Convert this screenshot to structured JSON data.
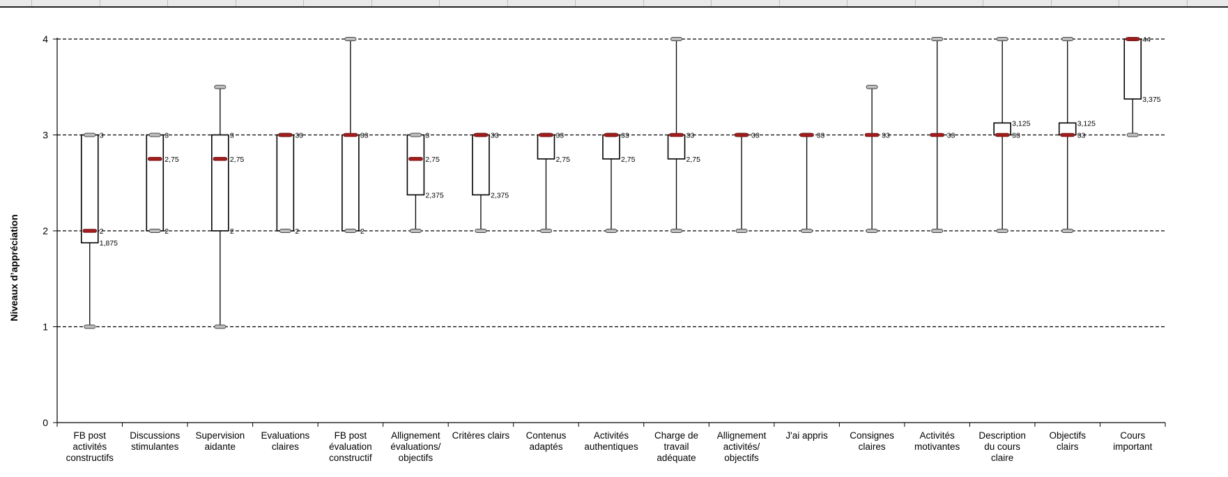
{
  "chart_data": {
    "type": "box",
    "ylabel": "Niveaux d’appréciation",
    "xlabel": "",
    "ylim": [
      0,
      4
    ],
    "yticks": [
      "0",
      "1",
      "2",
      "3",
      "4"
    ],
    "grid": "dashed horizontal lines at 1, 2, 3, 4",
    "legend": "none",
    "colors": {
      "median": "#a01c1c",
      "box": "#000000",
      "grid": "#000000"
    },
    "categories": [
      [
        "FB post",
        "activités",
        "constructifs"
      ],
      [
        "Discussions",
        "stimulantes"
      ],
      [
        "Supervision",
        "aidante"
      ],
      [
        "Evaluations",
        "claires"
      ],
      [
        "FB post",
        "évaluation",
        "constructif"
      ],
      [
        "Allignement",
        "évaluations/",
        "objectifs"
      ],
      [
        "Critères clairs"
      ],
      [
        "Contenus",
        "adaptés"
      ],
      [
        "Activités",
        "authentiques"
      ],
      [
        "Charge de",
        "travail",
        "adéquate"
      ],
      [
        "Allignement",
        "activités/",
        "objectifs"
      ],
      [
        "J'ai appris"
      ],
      [
        "Consignes",
        "claires"
      ],
      [
        "Activités",
        "motivantes"
      ],
      [
        "Description",
        "du cours",
        "claire"
      ],
      [
        "Objectifs",
        "clairs"
      ],
      [
        "Cours",
        "important"
      ]
    ],
    "boxes": [
      {
        "min": 1,
        "q1": 1.875,
        "median": 2,
        "q3": 3,
        "max": 3,
        "labels": [
          {
            "y": 3,
            "text": "3"
          },
          {
            "y": 2,
            "text": "2"
          },
          {
            "y": 1.875,
            "text": "1,875"
          }
        ]
      },
      {
        "min": 2,
        "q1": 2,
        "median": 2.75,
        "q3": 3,
        "max": 3,
        "labels": [
          {
            "y": 3,
            "text": "3"
          },
          {
            "y": 2.75,
            "text": "2,75"
          },
          {
            "y": 2,
            "text": "2"
          }
        ]
      },
      {
        "min": 1,
        "q1": 2,
        "median": 2.75,
        "q3": 3,
        "max": 3.5,
        "labels": [
          {
            "y": 3,
            "text": "3"
          },
          {
            "y": 2.75,
            "text": "2,75"
          },
          {
            "y": 2,
            "text": "2"
          }
        ]
      },
      {
        "min": 2,
        "q1": 2,
        "median": 3,
        "q3": 3,
        "max": 3,
        "labels": [
          {
            "y": 3,
            "text": "33"
          },
          {
            "y": 2,
            "text": "2"
          }
        ]
      },
      {
        "min": 2,
        "q1": 2,
        "median": 3,
        "q3": 3,
        "max": 4,
        "labels": [
          {
            "y": 3,
            "text": "33"
          },
          {
            "y": 2,
            "text": "2"
          }
        ]
      },
      {
        "min": 2,
        "q1": 2.375,
        "median": 2.75,
        "q3": 3,
        "max": 3,
        "labels": [
          {
            "y": 3,
            "text": "3"
          },
          {
            "y": 2.75,
            "text": "2,75"
          },
          {
            "y": 2.375,
            "text": "2,375"
          }
        ]
      },
      {
        "min": 2,
        "q1": 2.375,
        "median": 3,
        "q3": 3,
        "max": 3,
        "labels": [
          {
            "y": 3,
            "text": "33"
          },
          {
            "y": 2.375,
            "text": "2,375"
          }
        ]
      },
      {
        "min": 2,
        "q1": 2.75,
        "median": 3,
        "q3": 3,
        "max": 3,
        "labels": [
          {
            "y": 3,
            "text": "33"
          },
          {
            "y": 2.75,
            "text": "2,75"
          }
        ]
      },
      {
        "min": 2,
        "q1": 2.75,
        "median": 3,
        "q3": 3,
        "max": 3,
        "labels": [
          {
            "y": 3,
            "text": "33"
          },
          {
            "y": 2.75,
            "text": "2,75"
          }
        ]
      },
      {
        "min": 2,
        "q1": 2.75,
        "median": 3,
        "q3": 3,
        "max": 4,
        "labels": [
          {
            "y": 3,
            "text": "33"
          },
          {
            "y": 2.75,
            "text": "2,75"
          }
        ]
      },
      {
        "min": 2,
        "q1": 3,
        "median": 3,
        "q3": 3,
        "max": 3,
        "labels": [
          {
            "y": 3,
            "text": "33"
          }
        ]
      },
      {
        "min": 2,
        "q1": 3,
        "median": 3,
        "q3": 3,
        "max": 3,
        "labels": [
          {
            "y": 3,
            "text": "33"
          }
        ]
      },
      {
        "min": 2,
        "q1": 3,
        "median": 3,
        "q3": 3,
        "max": 3.5,
        "labels": [
          {
            "y": 3,
            "text": "33"
          }
        ]
      },
      {
        "min": 2,
        "q1": 3,
        "median": 3,
        "q3": 3,
        "max": 4,
        "labels": [
          {
            "y": 3,
            "text": "33"
          }
        ]
      },
      {
        "min": 2,
        "q1": 3,
        "median": 3,
        "q3": 3.125,
        "max": 4,
        "labels": [
          {
            "y": 3.125,
            "text": "3,125"
          },
          {
            "y": 3,
            "text": "33"
          }
        ]
      },
      {
        "min": 2,
        "q1": 3,
        "median": 3,
        "q3": 3.125,
        "max": 4,
        "labels": [
          {
            "y": 3.125,
            "text": "3,125"
          },
          {
            "y": 3,
            "text": "33"
          }
        ]
      },
      {
        "min": 3,
        "q1": 3.375,
        "median": 4,
        "q3": 4,
        "max": 4,
        "labels": [
          {
            "y": 4,
            "text": "44"
          },
          {
            "y": 3.375,
            "text": "3,375"
          }
        ]
      }
    ]
  }
}
